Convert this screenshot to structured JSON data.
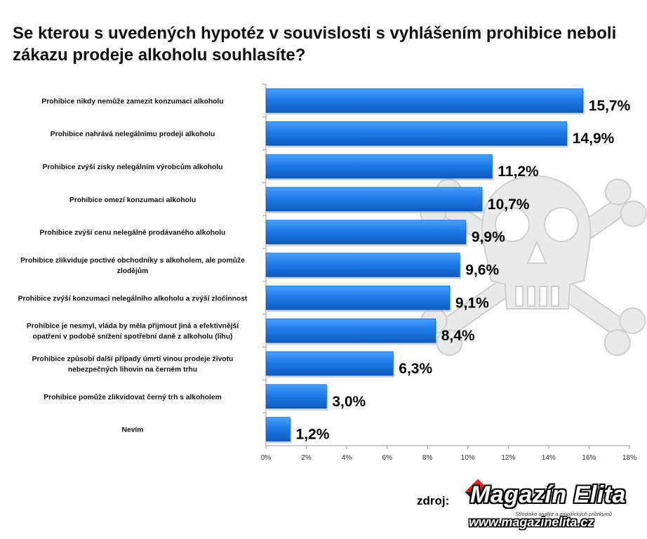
{
  "chart_data": {
    "type": "bar",
    "orientation": "horizontal",
    "title": "Se kterou s uvedených hypotéz v souvislosti s vyhlášením prohibice neboli zákazu prodeje alkoholu souhlasíte?",
    "categories": [
      "Prohibice nikdy nemůže zamezit konzumaci alkoholu",
      "Prohibice nahrává nelegálnímu prodeji alkoholu",
      "Prohibice zvýší zisky nelegálním výrobcům alkoholu",
      "Prohibice omezí konzumaci alkoholu",
      "Prohibice zvýší cenu nelegálně prodávaného alkoholu",
      "Prohibice zlikviduje poctivé obchodníky s alkoholem, ale pomůže zlodějům",
      "Prohibice zvýší konzumaci nelegálního alkoholu a zvýší zločinnost",
      "Prohibice je nesmyl, vláda by měla přijmout jiná a efektivnější opatření v podobě snížení spotřební daně z alkoholu (lihu)",
      "Prohibice způsobí další případy úmrtí vinou prodeje životu nebezpečných lihovin na černém trhu",
      "Prohibice pomůže zlikvidovat černý trh s alkoholem",
      "Nevím"
    ],
    "category_lines": [
      [
        "Prohibice nikdy nemůže zamezit konzumaci alkoholu"
      ],
      [
        "Prohibice nahrává nelegálnímu prodeji alkoholu"
      ],
      [
        "Prohibice zvýší zisky nelegálním výrobcům alkoholu"
      ],
      [
        "Prohibice omezí konzumaci alkoholu"
      ],
      [
        "Prohibice zvýší cenu nelegálně prodávaného alkoholu"
      ],
      [
        "Prohibice zlikviduje poctivé obchodníky s alkoholem, ale pomůže",
        "zlodějům"
      ],
      [
        "Prohibice zvýší konzumaci nelegálního alkoholu a zvýší zločinnost"
      ],
      [
        "Prohibice je nesmyl, vláda by měla přijmout jiná a efektivnější",
        "opatření v podobě snížení spotřební daně z alkoholu (lihu)"
      ],
      [
        "Prohibice způsobí další případy úmrtí vinou prodeje životu",
        "nebezpečných lihovin na černém trhu"
      ],
      [
        "Prohibice pomůže zlikvidovat černý trh s alkoholem"
      ],
      [
        "Nevím"
      ]
    ],
    "values": [
      15.7,
      14.9,
      11.2,
      10.7,
      9.9,
      9.6,
      9.1,
      8.4,
      6.3,
      3.0,
      1.2
    ],
    "value_labels": [
      "15,7%",
      "14,9%",
      "11,2%",
      "10,7%",
      "9,9%",
      "9,6%",
      "9,1%",
      "8,4%",
      "6,3%",
      "3,0%",
      "1,2%"
    ],
    "x_ticks": [
      0,
      2,
      4,
      6,
      8,
      10,
      12,
      14,
      16,
      18
    ],
    "x_tick_labels": [
      "0%",
      "2%",
      "4%",
      "6%",
      "8%",
      "10%",
      "12%",
      "14%",
      "16%",
      "18%"
    ],
    "xlim": [
      0,
      18
    ],
    "xlabel": "",
    "ylabel": "",
    "grid": false,
    "legend": "none",
    "bar_color": "#1f7be8"
  },
  "source": {
    "label": "zdroj:",
    "logo_name": "Magazín Elita",
    "logo_tagline": "Středisko analýz a empirických průzkumů",
    "logo_url": "www.magazinelita.cz"
  }
}
